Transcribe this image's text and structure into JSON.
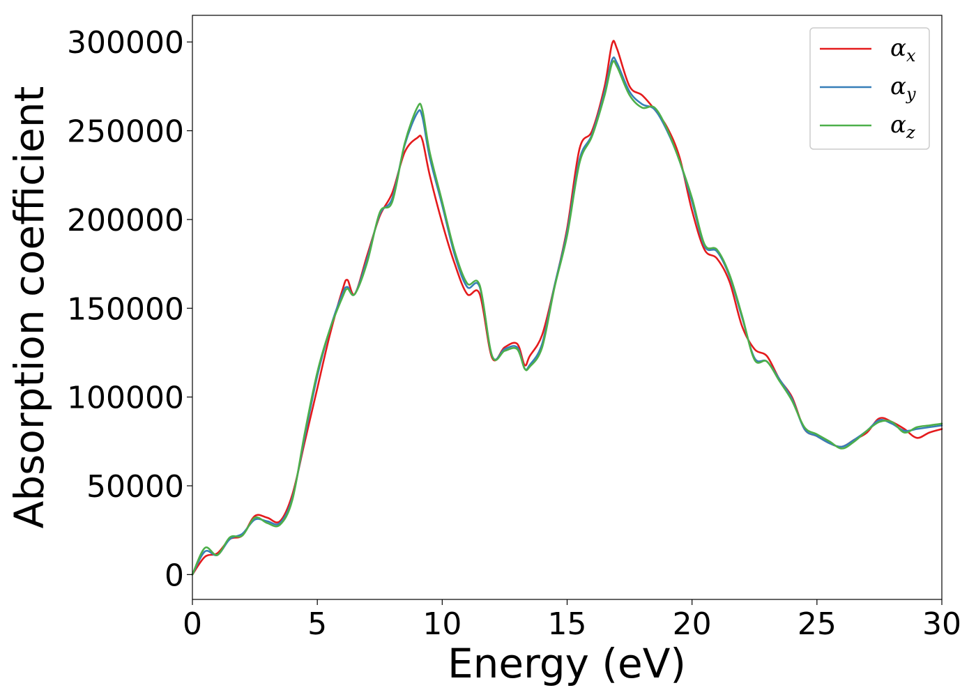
{
  "chart_data": {
    "type": "line",
    "title": "",
    "xlabel": "Energy (eV)",
    "ylabel": "Absorption coefficient",
    "xlim": [
      0,
      30
    ],
    "ylim": [
      -14000,
      315000
    ],
    "xticks": [
      0,
      5,
      10,
      15,
      20,
      25,
      30
    ],
    "yticks": [
      0,
      50000,
      100000,
      150000,
      200000,
      250000,
      300000
    ],
    "grid": false,
    "legend": "top-right",
    "series": [
      {
        "name": "α",
        "subscript": "x",
        "color": "#e41a1c",
        "x": [
          0,
          0.5,
          1.0,
          1.5,
          2.0,
          2.5,
          3.0,
          3.5,
          4.0,
          4.5,
          5.0,
          5.5,
          6.0,
          6.2,
          6.5,
          7.0,
          7.5,
          8.0,
          8.5,
          9.0,
          9.2,
          9.5,
          10.0,
          10.5,
          11.0,
          11.5,
          12.0,
          12.5,
          13.0,
          13.3,
          13.5,
          14.0,
          14.5,
          15.0,
          15.5,
          16.0,
          16.5,
          16.8,
          17.0,
          17.5,
          18.0,
          18.5,
          19.0,
          19.5,
          20.0,
          20.5,
          21.0,
          21.5,
          22.0,
          22.5,
          23.0,
          23.5,
          24.0,
          24.5,
          25.0,
          25.5,
          26.0,
          26.5,
          27.0,
          27.5,
          28.0,
          28.5,
          29.0,
          29.5,
          30.0
        ],
        "values": [
          0,
          10000,
          12000,
          20000,
          22000,
          33000,
          32000,
          30000,
          45000,
          75000,
          105000,
          135000,
          160000,
          166000,
          158000,
          180000,
          202000,
          215000,
          238000,
          246000,
          245000,
          225000,
          198000,
          175000,
          158000,
          158000,
          122000,
          128000,
          130000,
          118000,
          123000,
          135000,
          163000,
          195000,
          240000,
          250000,
          275000,
          299000,
          296000,
          275000,
          270000,
          262000,
          252000,
          235000,
          205000,
          183000,
          178000,
          165000,
          140000,
          127000,
          123000,
          110000,
          100000,
          82000,
          78000,
          74000,
          72000,
          76000,
          80000,
          88000,
          86000,
          82000,
          77000,
          80000,
          82000
        ]
      },
      {
        "name": "α",
        "subscript": "y",
        "color": "#377eb8",
        "x": [
          0,
          0.5,
          1.0,
          1.5,
          2.0,
          2.5,
          3.0,
          3.5,
          4.0,
          4.5,
          5.0,
          5.5,
          6.0,
          6.2,
          6.5,
          7.0,
          7.5,
          8.0,
          8.5,
          9.0,
          9.2,
          9.5,
          10.0,
          10.5,
          11.0,
          11.5,
          12.0,
          12.5,
          13.0,
          13.3,
          13.5,
          14.0,
          14.5,
          15.0,
          15.5,
          16.0,
          16.5,
          16.8,
          17.0,
          17.5,
          18.0,
          18.5,
          19.0,
          19.5,
          20.0,
          20.5,
          21.0,
          21.5,
          22.0,
          22.5,
          23.0,
          23.5,
          24.0,
          24.5,
          25.0,
          25.5,
          26.0,
          26.5,
          27.0,
          27.5,
          28.0,
          28.5,
          29.0,
          29.5,
          30.0
        ],
        "values": [
          0,
          13000,
          11000,
          20000,
          23000,
          31000,
          30000,
          29000,
          43000,
          78000,
          112000,
          138000,
          158000,
          162000,
          158000,
          178000,
          203000,
          212000,
          242000,
          260000,
          258000,
          235000,
          208000,
          180000,
          162000,
          162000,
          123000,
          127000,
          128000,
          116000,
          118000,
          130000,
          163000,
          193000,
          234000,
          248000,
          272000,
          290000,
          288000,
          272000,
          265000,
          262000,
          250000,
          233000,
          210000,
          185000,
          182000,
          168000,
          145000,
          122000,
          120000,
          110000,
          99000,
          82000,
          78000,
          74000,
          72000,
          76000,
          81000,
          87000,
          85000,
          81000,
          82000,
          83000,
          84000
        ]
      },
      {
        "name": "α",
        "subscript": "z",
        "color": "#4daf4a",
        "x": [
          0,
          0.5,
          1.0,
          1.5,
          2.0,
          2.5,
          3.0,
          3.5,
          4.0,
          4.5,
          5.0,
          5.5,
          6.0,
          6.2,
          6.5,
          7.0,
          7.5,
          8.0,
          8.5,
          9.0,
          9.2,
          9.5,
          10.0,
          10.5,
          11.0,
          11.5,
          12.0,
          12.5,
          13.0,
          13.3,
          13.5,
          14.0,
          14.5,
          15.0,
          15.5,
          16.0,
          16.5,
          16.8,
          17.0,
          17.5,
          18.0,
          18.5,
          19.0,
          19.5,
          20.0,
          20.5,
          21.0,
          21.5,
          22.0,
          22.5,
          23.0,
          23.5,
          24.0,
          24.5,
          25.0,
          25.5,
          26.0,
          26.5,
          27.0,
          27.5,
          28.0,
          28.5,
          29.0,
          29.5,
          30.0
        ],
        "values": [
          0,
          15000,
          11000,
          21000,
          22000,
          32000,
          29000,
          28000,
          42000,
          80000,
          114000,
          138000,
          156000,
          161000,
          158000,
          176000,
          204000,
          210000,
          243000,
          263000,
          262000,
          238000,
          210000,
          182000,
          164000,
          163000,
          123000,
          126000,
          127000,
          116000,
          117000,
          128000,
          162000,
          191000,
          232000,
          247000,
          270000,
          288000,
          286000,
          270000,
          263000,
          263000,
          251000,
          233000,
          212000,
          186000,
          183000,
          169000,
          146000,
          121000,
          120000,
          109000,
          98000,
          83000,
          79000,
          75000,
          71000,
          75000,
          81000,
          86000,
          86000,
          80000,
          83000,
          84000,
          85000
        ]
      }
    ]
  }
}
